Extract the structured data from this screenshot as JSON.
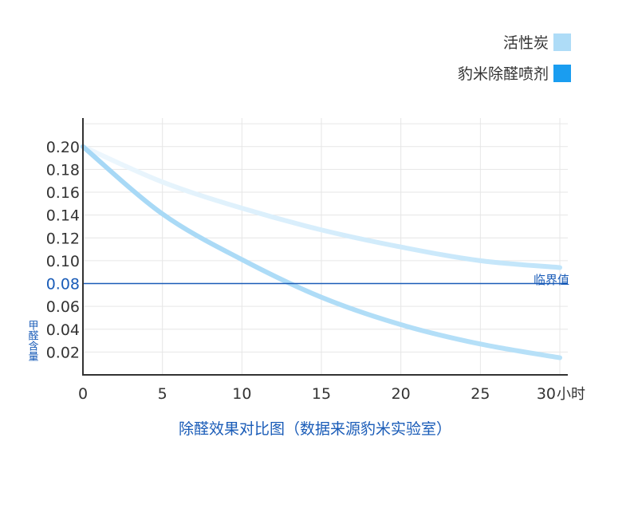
{
  "chart_data": {
    "type": "line",
    "title": "除醛效果对比图（数据来源豹米实验室）",
    "ylabel": "甲醛含量",
    "x_unit_label": "小时",
    "x_ticks": [
      "0",
      "5",
      "10",
      "15",
      "20",
      "25",
      "30"
    ],
    "y_ticks": [
      "0.02",
      "0.04",
      "0.06",
      "0.08",
      "0.10",
      "0.12",
      "0.14",
      "0.16",
      "0.18",
      "0.20"
    ],
    "xlim": [
      0,
      30.5
    ],
    "ylim": [
      0,
      0.225
    ],
    "grid": true,
    "legend_position": "top-right",
    "series": [
      {
        "name": "活性炭",
        "color": "#aedcf7",
        "x": [
          0,
          5,
          10,
          15,
          20,
          25,
          30
        ],
        "y": [
          0.2,
          0.169,
          0.146,
          0.127,
          0.112,
          0.1,
          0.094
        ]
      },
      {
        "name": "豹米除醛喷剂",
        "color": "#1a9df0",
        "x": [
          0,
          5,
          10,
          15,
          20,
          25,
          30
        ],
        "y": [
          0.2,
          0.141,
          0.101,
          0.068,
          0.044,
          0.027,
          0.015
        ]
      }
    ],
    "threshold": {
      "value": 0.08,
      "label": "临界值",
      "color": "#1a5cb8"
    }
  }
}
